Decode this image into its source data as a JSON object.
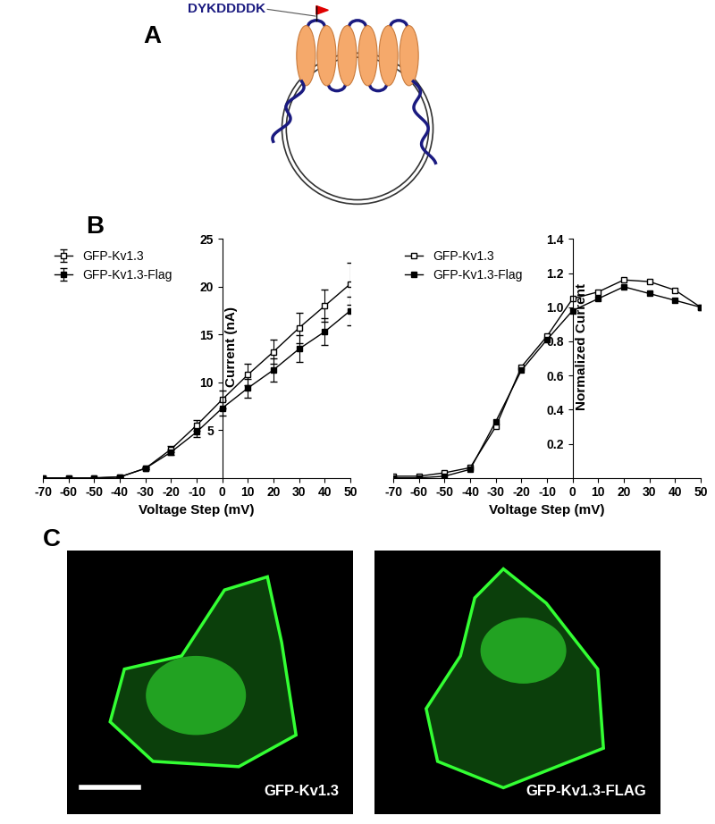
{
  "panel_labels": [
    "A",
    "B",
    "C"
  ],
  "diagram": {
    "tag_sequence": "DYKDDDDK"
  },
  "chart_data": [
    {
      "type": "line",
      "x": [
        -70,
        -60,
        -50,
        -40,
        -30,
        -20,
        -10,
        0,
        10,
        20,
        30,
        40,
        50
      ],
      "xlim": [
        -70,
        50
      ],
      "xticks": [
        -70,
        -60,
        -50,
        -40,
        -30,
        -20,
        -10,
        0,
        10,
        20,
        30,
        40,
        50
      ],
      "ylim": [
        0,
        25
      ],
      "yticks": [
        5,
        10,
        15,
        20,
        25
      ],
      "xlabel": "Voltage Step (mV)",
      "ylabel": "Current (nA)",
      "legend": "upper left",
      "series": [
        {
          "name": "GFP-Kv1.3",
          "color": "#000000",
          "marker": "square_open",
          "values": [
            0,
            0,
            0,
            0.1,
            1.0,
            3.0,
            5.5,
            8.2,
            10.8,
            13.2,
            15.7,
            18.0,
            20.3
          ],
          "errors": [
            0,
            0,
            0,
            0.05,
            0.1,
            0.3,
            0.6,
            0.9,
            1.1,
            1.3,
            1.6,
            1.7,
            2.2
          ]
        },
        {
          "name": "GFP-Kv1.3-Flag",
          "color": "#000000",
          "marker": "square_filled",
          "values": [
            0,
            0,
            0,
            0.1,
            1.0,
            2.7,
            4.8,
            7.3,
            9.4,
            11.3,
            13.5,
            15.3,
            17.5
          ],
          "errors": [
            0,
            0,
            0,
            0.05,
            0.1,
            0.3,
            0.5,
            0.8,
            1.0,
            1.2,
            1.4,
            1.4,
            1.5
          ]
        }
      ]
    },
    {
      "type": "line",
      "x": [
        -70,
        -60,
        -50,
        -40,
        -30,
        -20,
        -10,
        0,
        10,
        20,
        30,
        40,
        50
      ],
      "xlim": [
        -70,
        50
      ],
      "xticks": [
        -70,
        -60,
        -50,
        -40,
        -30,
        -20,
        -10,
        0,
        10,
        20,
        30,
        40,
        50
      ],
      "ylim": [
        0,
        1.4
      ],
      "yticks": [
        0.2,
        0.4,
        0.6,
        0.8,
        {
          "value": 1.0,
          "label": "1.0"
        },
        1.2,
        1.4
      ],
      "xlabel": "Voltage Step (mV)",
      "ylabel": "Normalized Current",
      "legend": "upper left",
      "series": [
        {
          "name": "GFP-Kv1.3",
          "color": "#000000",
          "marker": "square_open",
          "values": [
            0.01,
            0.01,
            0.03,
            0.06,
            0.3,
            0.65,
            0.83,
            1.05,
            1.09,
            1.16,
            1.15,
            1.1,
            1.0
          ]
        },
        {
          "name": "GFP-Kv1.3-Flag",
          "color": "#000000",
          "marker": "square_filled",
          "values": [
            0.0,
            0.0,
            0.01,
            0.05,
            0.33,
            0.63,
            0.81,
            0.98,
            1.05,
            1.12,
            1.08,
            1.04,
            1.0
          ]
        }
      ]
    }
  ],
  "images": {
    "labels": [
      "GFP-Kv1.3",
      "GFP-Kv1.3-FLAG"
    ]
  }
}
